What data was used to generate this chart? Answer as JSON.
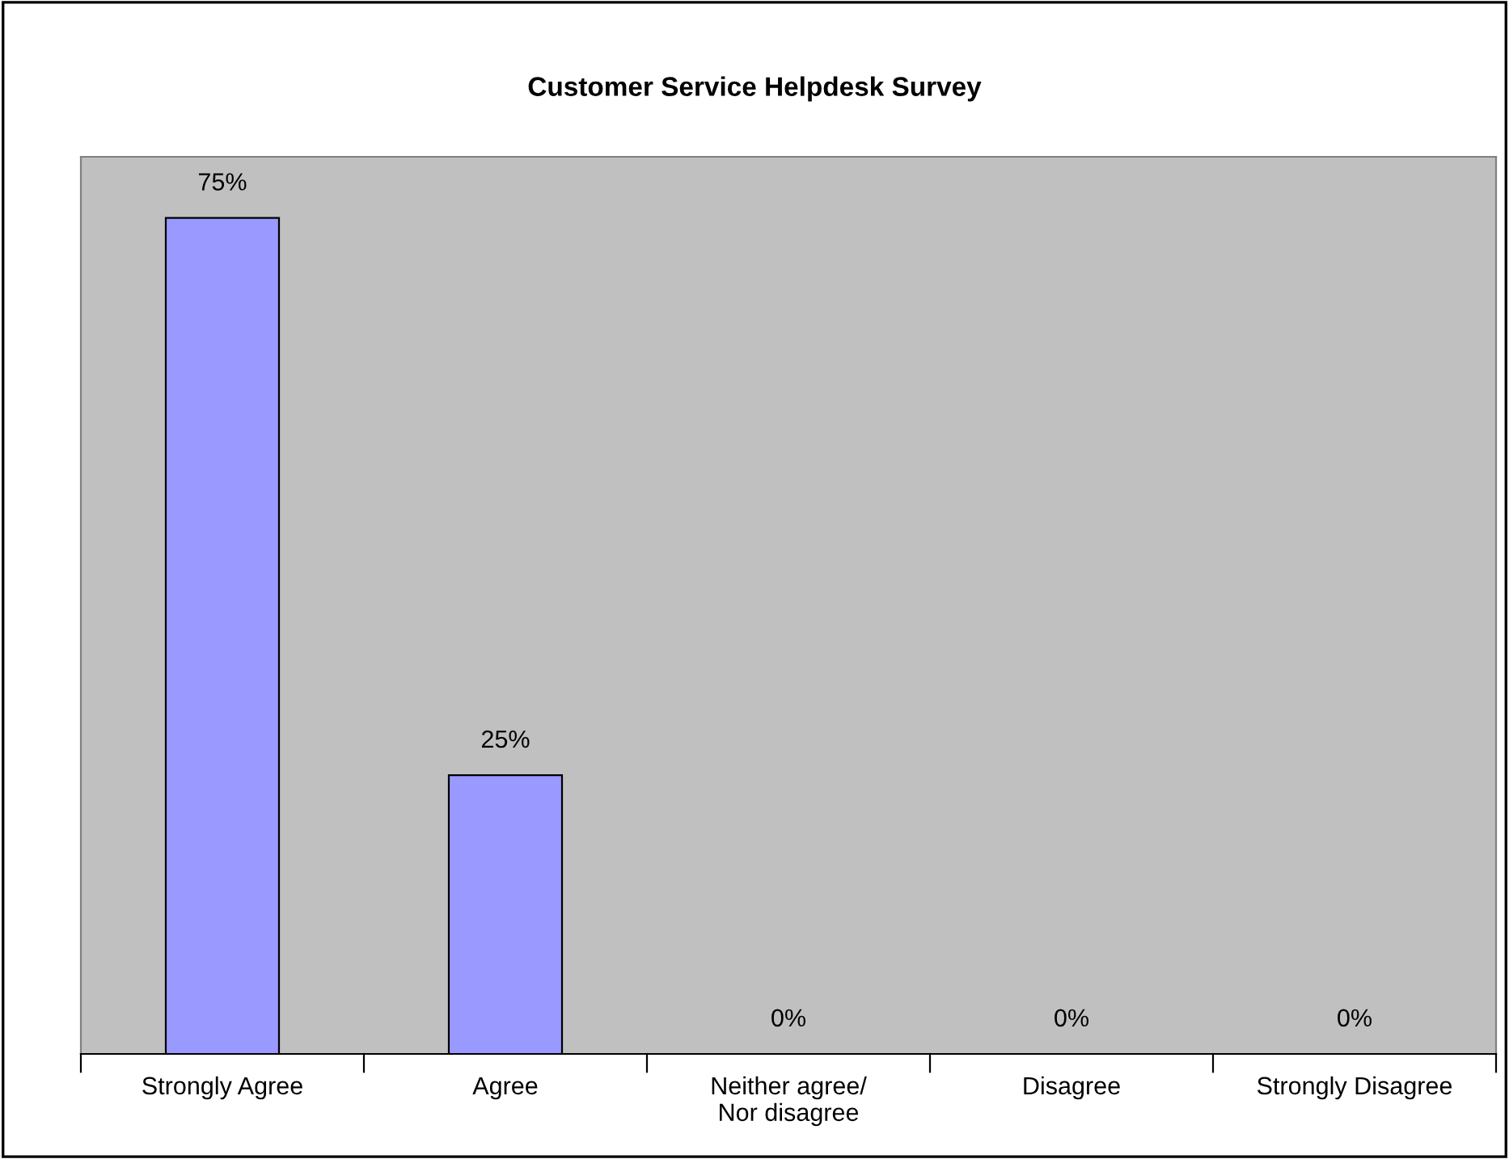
{
  "chart_data": {
    "type": "bar",
    "title": "Customer Service Helpdesk Survey",
    "categories": [
      "Strongly Agree",
      "Agree",
      "Neither agree/\nNor disagree",
      "Disagree",
      "Strongly Disagree"
    ],
    "values": [
      75,
      25,
      0,
      0,
      0
    ],
    "value_labels": [
      "75%",
      "25%",
      "0%",
      "0%",
      "0%"
    ],
    "color": "#9999ff",
    "grid": false,
    "tick_labels": "x"
  }
}
